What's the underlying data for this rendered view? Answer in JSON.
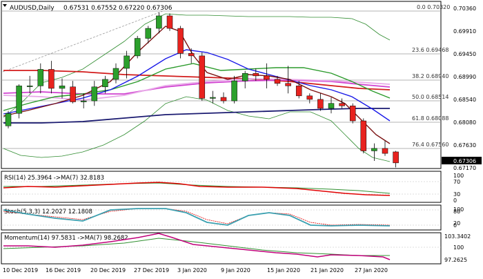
{
  "header": {
    "symbol": "AUDUSD,Daily",
    "ohlc": "0.67531 0.67552 0.67220 0.67306"
  },
  "price_axis": {
    "labels": [
      "0.70360",
      "0.69910",
      "0.69450",
      "0.68990",
      "0.68540",
      "0.68080",
      "0.67630",
      "0.67170"
    ],
    "current": "0.67306"
  },
  "fib_levels": [
    "0.0 0.70320",
    "23.6 0.69468",
    "38.2 0.68940",
    "50.0 0.68514",
    "61.8 0.68088",
    "76.4 0.67560"
  ],
  "date_axis": [
    "10 Dec 2019",
    "16 Dec 2019",
    "20 Dec 2019",
    "27 Dec 2019",
    "3 Jan 2020",
    "9 Jan 2020",
    "15 Jan 2020",
    "21 Jan 2020",
    "27 Jan 2020"
  ],
  "rsi_panel": {
    "title": "RSI(14) 25.3964 ->MA(7) 32.8183",
    "levels": [
      "100",
      "70",
      "30",
      "0"
    ]
  },
  "stoch_panel": {
    "title": "Stoch(5,3,3) 12.2027 12.1808",
    "levels": [
      "100",
      "80",
      "20",
      "0"
    ]
  },
  "momentum_panel": {
    "title": "Momentum(14) 97.5831 ->MA(7) 98.2682",
    "levels": [
      "103.3402",
      "100",
      "97.2625"
    ]
  },
  "colors": {
    "bull": "#2ca02c",
    "bear": "#e8231f",
    "rsi": "#e00000",
    "rsi_ma": "#2f8f2f",
    "stoch_k": "#3aa0b0",
    "stoch_d": "#e00000",
    "momentum": "#c0007a",
    "momentum_ma": "#2f8f2f"
  },
  "chart_data": {
    "type": "candlestick",
    "candles": [
      {
        "o": 0.6805,
        "h": 0.6835,
        "l": 0.68,
        "c": 0.683
      },
      {
        "o": 0.683,
        "h": 0.6888,
        "l": 0.682,
        "c": 0.6885
      },
      {
        "o": 0.6885,
        "h": 0.6905,
        "l": 0.687,
        "c": 0.6885
      },
      {
        "o": 0.6885,
        "h": 0.693,
        "l": 0.687,
        "c": 0.6918
      },
      {
        "o": 0.6918,
        "h": 0.6935,
        "l": 0.687,
        "c": 0.688
      },
      {
        "o": 0.688,
        "h": 0.69,
        "l": 0.686,
        "c": 0.6885
      },
      {
        "o": 0.6883,
        "h": 0.6895,
        "l": 0.685,
        "c": 0.6853
      },
      {
        "o": 0.6853,
        "h": 0.687,
        "l": 0.684,
        "c": 0.6855
      },
      {
        "o": 0.6855,
        "h": 0.6895,
        "l": 0.6845,
        "c": 0.6883
      },
      {
        "o": 0.6883,
        "h": 0.6905,
        "l": 0.687,
        "c": 0.6898
      },
      {
        "o": 0.6898,
        "h": 0.693,
        "l": 0.689,
        "c": 0.692
      },
      {
        "o": 0.692,
        "h": 0.6955,
        "l": 0.69,
        "c": 0.6945
      },
      {
        "o": 0.6945,
        "h": 0.6985,
        "l": 0.694,
        "c": 0.698
      },
      {
        "o": 0.698,
        "h": 0.7005,
        "l": 0.697,
        "c": 0.7
      },
      {
        "o": 0.7,
        "h": 0.7032,
        "l": 0.699,
        "c": 0.7025
      },
      {
        "o": 0.7025,
        "h": 0.703,
        "l": 0.6995,
        "c": 0.7
      },
      {
        "o": 0.7,
        "h": 0.7005,
        "l": 0.694,
        "c": 0.695
      },
      {
        "o": 0.695,
        "h": 0.696,
        "l": 0.693,
        "c": 0.6945
      },
      {
        "o": 0.6945,
        "h": 0.6952,
        "l": 0.6855,
        "c": 0.686
      },
      {
        "o": 0.686,
        "h": 0.6875,
        "l": 0.685,
        "c": 0.6862
      },
      {
        "o": 0.6862,
        "h": 0.6872,
        "l": 0.685,
        "c": 0.6855
      },
      {
        "o": 0.6855,
        "h": 0.6905,
        "l": 0.685,
        "c": 0.6895
      },
      {
        "o": 0.6895,
        "h": 0.6915,
        "l": 0.688,
        "c": 0.691
      },
      {
        "o": 0.691,
        "h": 0.692,
        "l": 0.6895,
        "c": 0.6905
      },
      {
        "o": 0.6905,
        "h": 0.693,
        "l": 0.688,
        "c": 0.6898
      },
      {
        "o": 0.6898,
        "h": 0.6905,
        "l": 0.6885,
        "c": 0.689
      },
      {
        "o": 0.689,
        "h": 0.6925,
        "l": 0.687,
        "c": 0.6885
      },
      {
        "o": 0.6885,
        "h": 0.6895,
        "l": 0.686,
        "c": 0.6865
      },
      {
        "o": 0.6865,
        "h": 0.687,
        "l": 0.685,
        "c": 0.6858
      },
      {
        "o": 0.6858,
        "h": 0.687,
        "l": 0.6835,
        "c": 0.684
      },
      {
        "o": 0.684,
        "h": 0.6862,
        "l": 0.683,
        "c": 0.685
      },
      {
        "o": 0.685,
        "h": 0.686,
        "l": 0.684,
        "c": 0.6845
      },
      {
        "o": 0.6845,
        "h": 0.685,
        "l": 0.681,
        "c": 0.6815
      },
      {
        "o": 0.6815,
        "h": 0.682,
        "l": 0.675,
        "c": 0.6755
      },
      {
        "o": 0.6755,
        "h": 0.677,
        "l": 0.6735,
        "c": 0.676
      },
      {
        "o": 0.676,
        "h": 0.6775,
        "l": 0.6745,
        "c": 0.675
      },
      {
        "o": 0.6753,
        "h": 0.6755,
        "l": 0.6722,
        "c": 0.6731
      }
    ]
  }
}
